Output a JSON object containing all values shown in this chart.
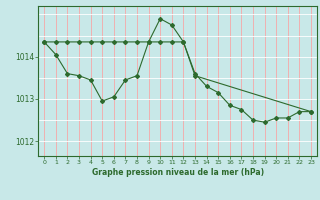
{
  "line1_x": [
    0,
    1,
    2,
    3,
    4,
    5,
    6,
    7,
    8,
    9,
    10,
    11,
    12,
    13,
    14,
    15,
    16,
    17,
    18,
    19,
    20,
    21,
    22,
    23
  ],
  "line1_y": [
    1014.35,
    1014.05,
    1013.6,
    1013.55,
    1013.45,
    1012.95,
    1013.05,
    1013.45,
    1013.55,
    1014.35,
    1014.9,
    1014.75,
    1014.35,
    1013.6,
    1013.3,
    1013.15,
    1012.85,
    1012.75,
    1012.5,
    1012.45,
    1012.55,
    1012.55,
    1012.7,
    1012.7
  ],
  "line2_x": [
    0,
    1,
    2,
    3,
    4,
    5,
    6,
    7,
    8,
    9,
    10,
    11,
    12,
    13,
    23
  ],
  "line2_y": [
    1014.35,
    1014.35,
    1014.35,
    1014.35,
    1014.35,
    1014.35,
    1014.35,
    1014.35,
    1014.35,
    1014.35,
    1014.35,
    1014.35,
    1014.35,
    1013.55,
    1012.7
  ],
  "line_color": "#2d6a2d",
  "bg_color": "#c8e8e8",
  "xlabel": "Graphe pression niveau de la mer (hPa)",
  "yticks": [
    1012,
    1013,
    1014
  ],
  "xticks": [
    0,
    1,
    2,
    3,
    4,
    5,
    6,
    7,
    8,
    9,
    10,
    11,
    12,
    13,
    14,
    15,
    16,
    17,
    18,
    19,
    20,
    21,
    22,
    23
  ],
  "xlim": [
    -0.5,
    23.5
  ],
  "ylim": [
    1011.65,
    1015.2
  ]
}
